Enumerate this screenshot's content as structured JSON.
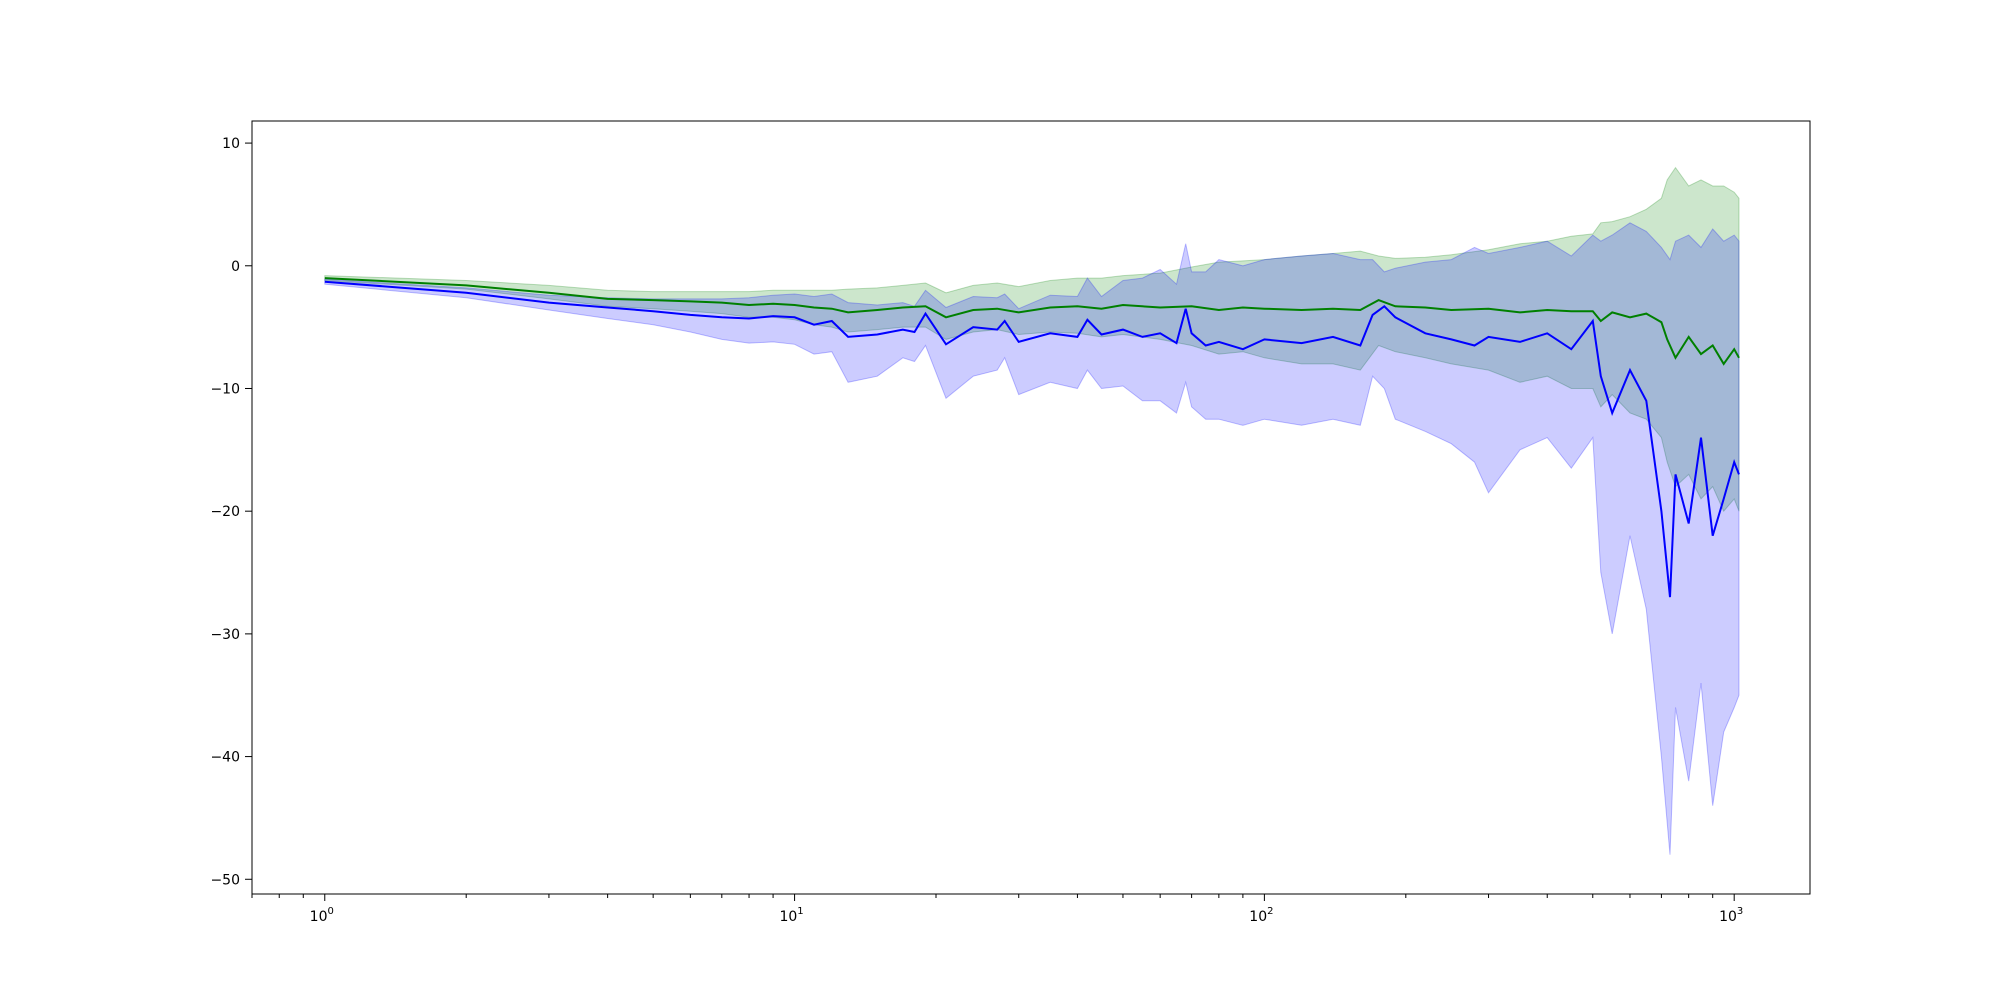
{
  "chart_data": {
    "type": "line",
    "title": "",
    "xlabel": "",
    "ylabel": "",
    "xscale": "log",
    "xlim": [
      0.7,
      1450
    ],
    "ylim": [
      -51.2,
      11.8
    ],
    "grid": false,
    "legend": "none",
    "x_ticks": [
      {
        "value": 1,
        "base": "10",
        "exp": "0"
      },
      {
        "value": 10,
        "base": "10",
        "exp": "1"
      },
      {
        "value": 100,
        "base": "10",
        "exp": "2"
      },
      {
        "value": 1000,
        "base": "10",
        "exp": "3"
      }
    ],
    "y_ticks": [
      {
        "value": 10,
        "label": "10"
      },
      {
        "value": 0,
        "label": "0"
      },
      {
        "value": -10,
        "label": "−10"
      },
      {
        "value": -20,
        "label": "−20"
      },
      {
        "value": -30,
        "label": "−30"
      },
      {
        "value": -40,
        "label": "−40"
      },
      {
        "value": -50,
        "label": "−50"
      }
    ],
    "series": [
      {
        "color": "#008000",
        "band_color": "#008000",
        "x": [
          1,
          2,
          3,
          4,
          5,
          6,
          7,
          8,
          9,
          10,
          11,
          12,
          13,
          15,
          17,
          19,
          21,
          24,
          27,
          30,
          35,
          40,
          45,
          50,
          60,
          70,
          80,
          90,
          100,
          120,
          140,
          160,
          175,
          190,
          220,
          250,
          300,
          350,
          400,
          450,
          500,
          520,
          550,
          600,
          650,
          700,
          720,
          750,
          800,
          850,
          900,
          950,
          1000,
          1024
        ],
        "mean": [
          -1.0,
          -1.6,
          -2.2,
          -2.7,
          -2.8,
          -2.9,
          -3.0,
          -3.2,
          -3.1,
          -3.2,
          -3.4,
          -3.5,
          -3.8,
          -3.6,
          -3.4,
          -3.3,
          -4.2,
          -3.6,
          -3.5,
          -3.8,
          -3.4,
          -3.3,
          -3.5,
          -3.2,
          -3.4,
          -3.3,
          -3.6,
          -3.4,
          -3.5,
          -3.6,
          -3.5,
          -3.6,
          -2.8,
          -3.3,
          -3.4,
          -3.6,
          -3.5,
          -3.8,
          -3.6,
          -3.7,
          -3.7,
          -4.5,
          -3.8,
          -4.2,
          -3.9,
          -4.6,
          -6.0,
          -7.5,
          -5.8,
          -7.2,
          -6.5,
          -8.0,
          -6.8,
          -7.5
        ],
        "lower": [
          -1.2,
          -1.9,
          -2.7,
          -3.3,
          -3.5,
          -3.7,
          -3.9,
          -4.2,
          -4.2,
          -4.4,
          -4.8,
          -5.0,
          -5.4,
          -5.2,
          -5.0,
          -5.0,
          -6.0,
          -5.4,
          -5.2,
          -5.6,
          -5.4,
          -5.5,
          -5.8,
          -5.6,
          -6.0,
          -6.5,
          -7.2,
          -7.0,
          -7.5,
          -8.0,
          -8.0,
          -8.5,
          -6.5,
          -7.0,
          -7.5,
          -8.0,
          -8.5,
          -9.5,
          -9.0,
          -10.0,
          -10.0,
          -11.5,
          -10.5,
          -12.0,
          -12.5,
          -14.0,
          -16.0,
          -18.0,
          -17.0,
          -19.0,
          -18.0,
          -20.0,
          -19.0,
          -20.0
        ],
        "upper": [
          -0.8,
          -1.2,
          -1.6,
          -2.0,
          -2.1,
          -2.1,
          -2.1,
          -2.1,
          -2.0,
          -2.0,
          -2.0,
          -2.0,
          -1.9,
          -1.8,
          -1.6,
          -1.4,
          -2.2,
          -1.6,
          -1.4,
          -1.7,
          -1.2,
          -1.0,
          -1.0,
          -0.8,
          -0.6,
          -0.1,
          0.3,
          0.4,
          0.5,
          0.8,
          1.0,
          1.2,
          0.8,
          0.6,
          0.7,
          0.9,
          1.3,
          1.8,
          2.0,
          2.4,
          2.6,
          3.5,
          3.6,
          4.0,
          4.6,
          5.5,
          7.0,
          8.0,
          6.5,
          7.0,
          6.5,
          6.5,
          6.0,
          5.5
        ]
      },
      {
        "color": "#0000ff",
        "band_color": "#0000ff",
        "x": [
          1,
          2,
          3,
          4,
          5,
          6,
          7,
          8,
          9,
          10,
          11,
          12,
          13,
          15,
          17,
          18,
          19,
          21,
          24,
          27,
          28,
          30,
          35,
          40,
          42,
          45,
          50,
          55,
          60,
          65,
          68,
          70,
          75,
          80,
          90,
          100,
          120,
          140,
          160,
          170,
          180,
          190,
          220,
          250,
          280,
          300,
          350,
          400,
          450,
          500,
          520,
          550,
          600,
          650,
          700,
          730,
          750,
          800,
          850,
          900,
          950,
          1000,
          1024
        ],
        "mean": [
          -1.3,
          -2.2,
          -3.0,
          -3.4,
          -3.7,
          -4.0,
          -4.2,
          -4.3,
          -4.1,
          -4.2,
          -4.8,
          -4.5,
          -5.8,
          -5.6,
          -5.2,
          -5.4,
          -3.9,
          -6.4,
          -5.0,
          -5.2,
          -4.5,
          -6.2,
          -5.5,
          -5.8,
          -4.4,
          -5.6,
          -5.2,
          -5.8,
          -5.5,
          -6.3,
          -3.5,
          -5.5,
          -6.5,
          -6.2,
          -6.8,
          -6.0,
          -6.3,
          -5.8,
          -6.5,
          -4.0,
          -3.3,
          -4.2,
          -5.5,
          -6.0,
          -6.5,
          -5.8,
          -6.2,
          -5.5,
          -6.8,
          -4.5,
          -9.0,
          -12.0,
          -8.5,
          -11.0,
          -20.0,
          -27.0,
          -17.0,
          -21.0,
          -14.0,
          -22.0,
          -19.0,
          -16.0,
          -17.0
        ],
        "lower": [
          -1.5,
          -2.6,
          -3.6,
          -4.3,
          -4.8,
          -5.4,
          -6.0,
          -6.3,
          -6.2,
          -6.4,
          -7.2,
          -7.0,
          -9.5,
          -9.0,
          -7.5,
          -7.8,
          -6.5,
          -10.8,
          -9.0,
          -8.5,
          -7.5,
          -10.5,
          -9.5,
          -10.0,
          -8.5,
          -10.0,
          -9.8,
          -11.0,
          -11.0,
          -12.0,
          -9.5,
          -11.5,
          -12.5,
          -12.5,
          -13.0,
          -12.5,
          -13.0,
          -12.5,
          -13.0,
          -9.0,
          -10.0,
          -12.5,
          -13.5,
          -14.5,
          -16.0,
          -18.5,
          -15.0,
          -14.0,
          -16.5,
          -14.0,
          -25.0,
          -30.0,
          -22.0,
          -28.0,
          -40.0,
          -48.0,
          -36.0,
          -42.0,
          -34.0,
          -44.0,
          -38.0,
          -36.0,
          -35.0
        ],
        "upper": [
          -1.1,
          -1.8,
          -2.4,
          -2.6,
          -2.7,
          -2.7,
          -2.7,
          -2.6,
          -2.4,
          -2.3,
          -2.5,
          -2.3,
          -3.0,
          -3.2,
          -3.0,
          -3.3,
          -2.0,
          -3.4,
          -2.5,
          -2.6,
          -2.3,
          -3.5,
          -2.4,
          -2.5,
          -1.0,
          -2.5,
          -1.2,
          -1.0,
          -0.3,
          -1.5,
          1.8,
          -0.5,
          -0.5,
          0.5,
          0.0,
          0.5,
          0.8,
          1.0,
          0.5,
          0.5,
          -0.5,
          -0.2,
          0.3,
          0.5,
          1.5,
          1.0,
          1.5,
          2.0,
          0.8,
          2.5,
          2.0,
          2.5,
          3.5,
          2.8,
          1.5,
          0.5,
          2.0,
          2.5,
          1.5,
          3.0,
          2.0,
          2.5,
          2.0
        ]
      }
    ]
  }
}
